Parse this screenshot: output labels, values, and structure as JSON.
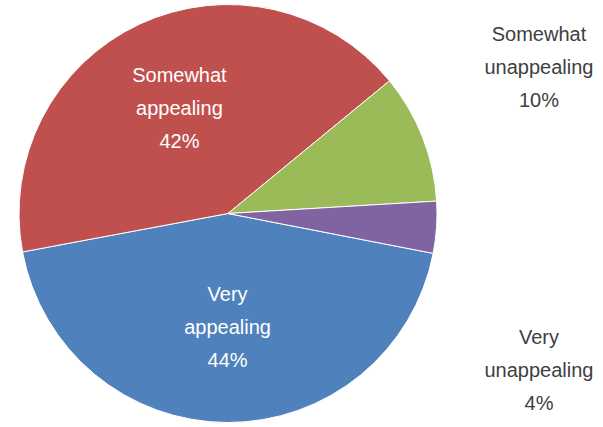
{
  "chart_data": {
    "type": "pie",
    "categories": [
      "Very appealing",
      "Somewhat appealing",
      "Somewhat unappealing",
      "Very unappealing"
    ],
    "values": [
      44,
      42,
      10,
      4
    ],
    "value_labels": [
      "44%",
      "42%",
      "10%",
      "4%"
    ],
    "colors": [
      "#4f81bd",
      "#c0504d",
      "#9bbb59",
      "#8064a2"
    ],
    "data_labels": true
  }
}
